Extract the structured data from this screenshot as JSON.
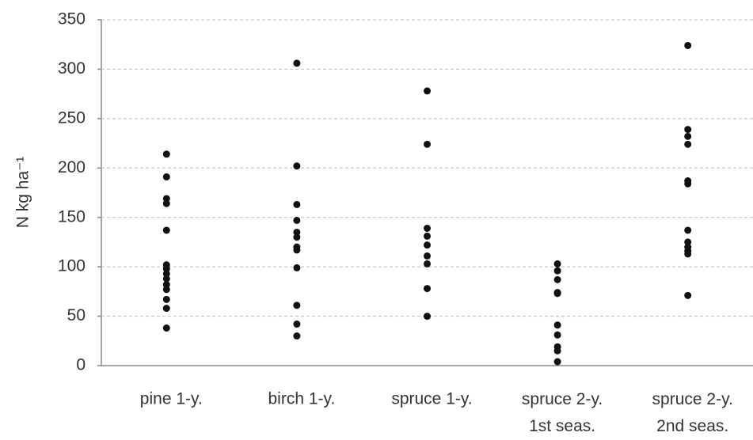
{
  "chart_data": {
    "type": "strip",
    "ylabel": "N kg ha⁻¹",
    "categories": [
      "pine 1-y.",
      "birch 1-y.",
      "spruce 1-y.",
      "spruce 2-y.\n1st seas.",
      "spruce 2-y.\n2nd seas."
    ],
    "values": [
      [
        214,
        191,
        169,
        164,
        137,
        102,
        98,
        93,
        88,
        82,
        77,
        67,
        58,
        38
      ],
      [
        306,
        202,
        163,
        147,
        135,
        130,
        120,
        117,
        99,
        61,
        42,
        30
      ],
      [
        278,
        224,
        139,
        131,
        122,
        111,
        103,
        78,
        50
      ],
      [
        103,
        96,
        87,
        74,
        73,
        41,
        31,
        19,
        15,
        4
      ],
      [
        324,
        239,
        232,
        224,
        187,
        184,
        137,
        125,
        120,
        116,
        113,
        71
      ]
    ],
    "color": "#111111",
    "ylim": [
      0,
      350
    ],
    "yticks": [
      0,
      50,
      100,
      150,
      200,
      250,
      300,
      350
    ],
    "grid": true
  }
}
